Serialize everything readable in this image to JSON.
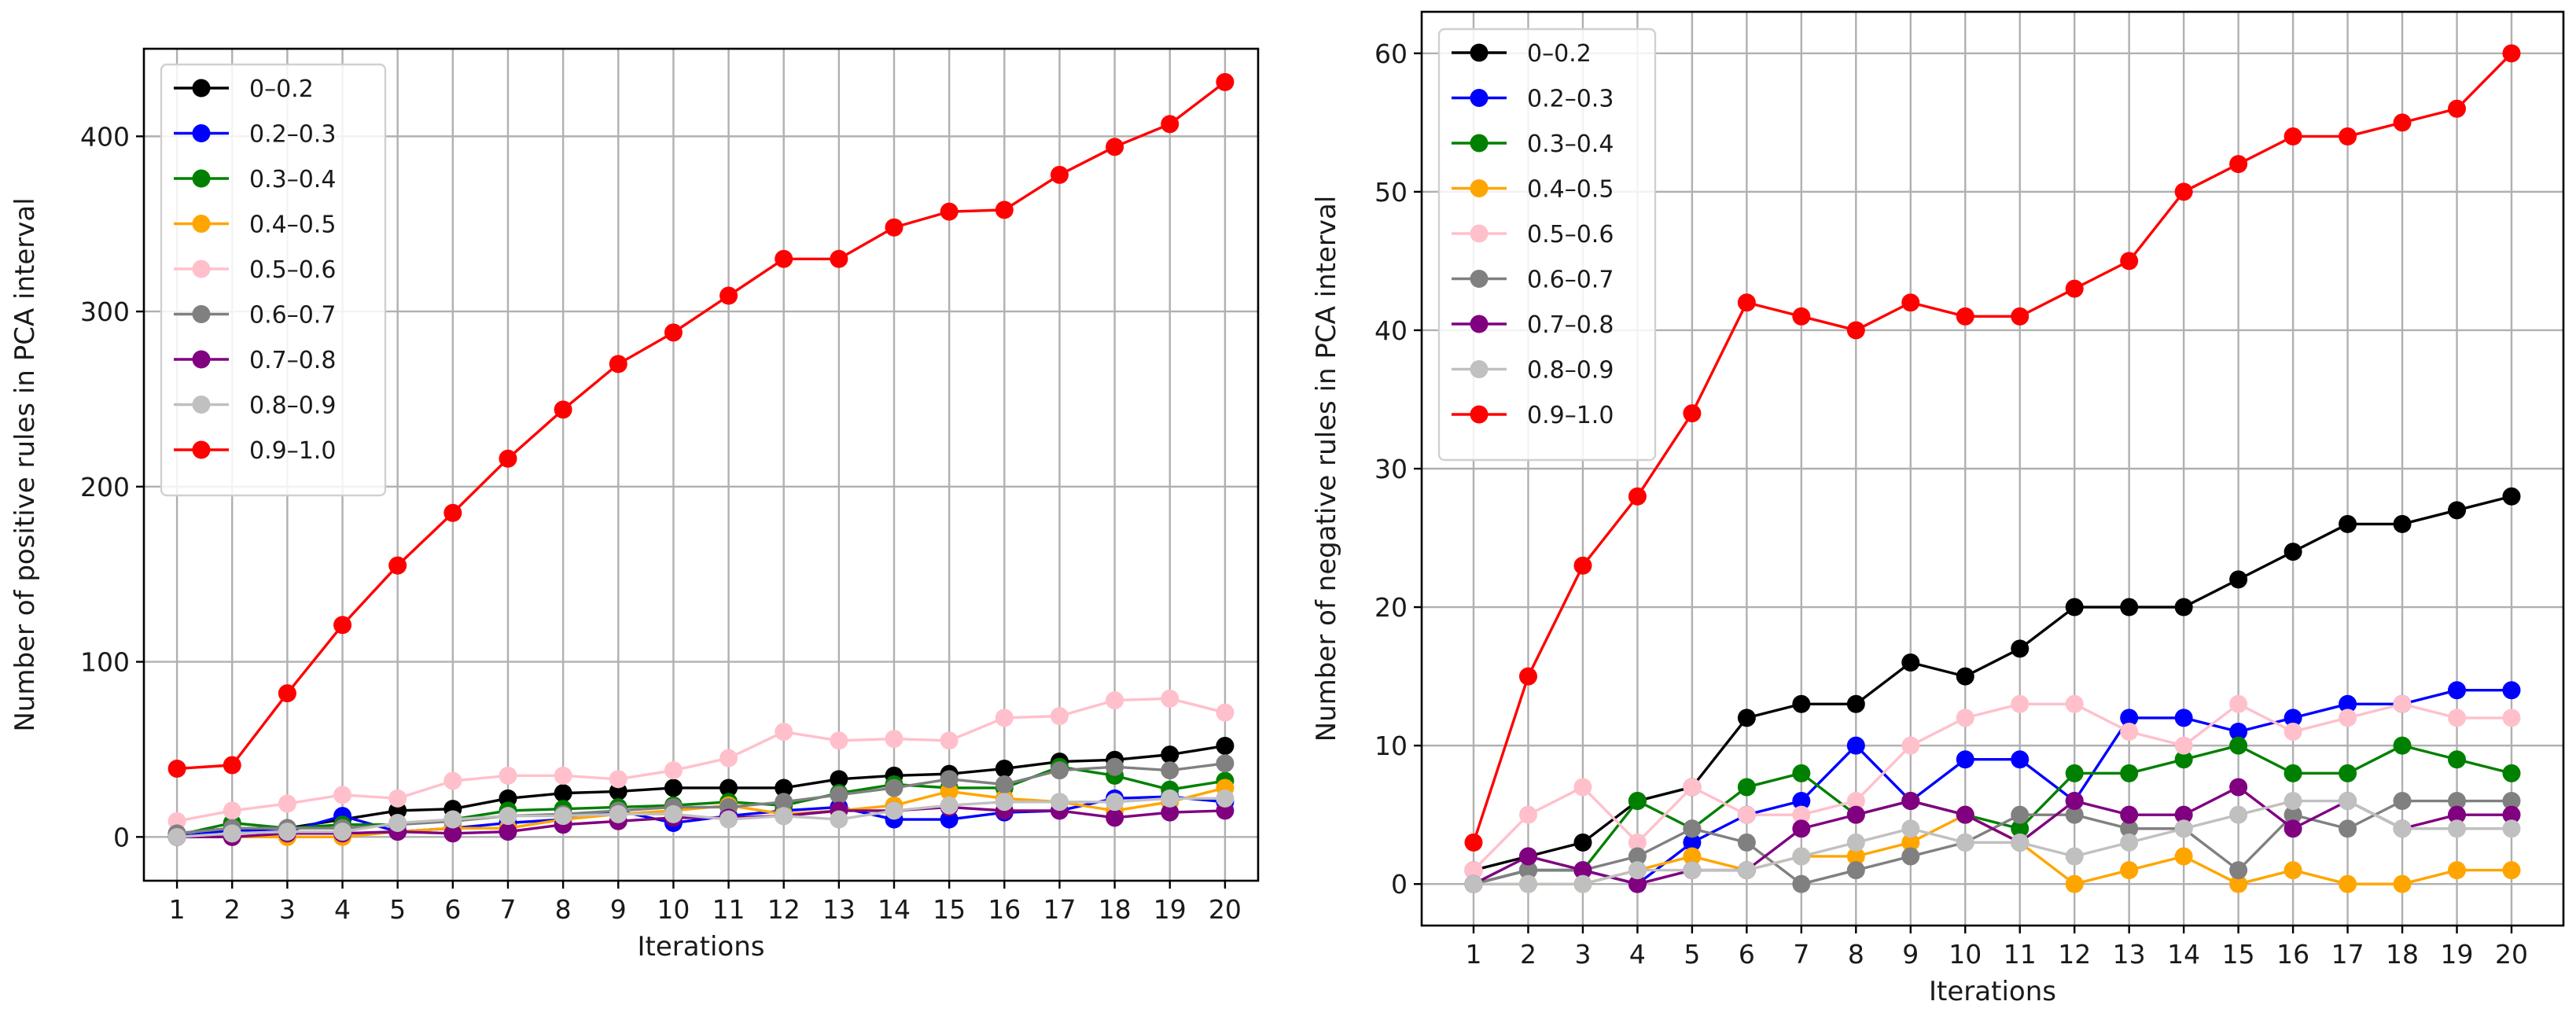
{
  "chart_data": [
    {
      "type": "line",
      "title": "",
      "xlabel": "Iterations",
      "ylabel": "Number of positive rules in PCA interval",
      "x": [
        1,
        2,
        3,
        4,
        5,
        6,
        7,
        8,
        9,
        10,
        11,
        12,
        13,
        14,
        15,
        16,
        17,
        18,
        19,
        20
      ],
      "xticks": [
        "1",
        "2",
        "3",
        "4",
        "5",
        "6",
        "7",
        "8",
        "9",
        "10",
        "11",
        "12",
        "13",
        "14",
        "15",
        "16",
        "17",
        "18",
        "19",
        "20"
      ],
      "xlim": [
        0.4,
        20.6
      ],
      "ylim": [
        -25,
        450
      ],
      "yticks": [
        0,
        100,
        200,
        300,
        400
      ],
      "ytick_labels": [
        "0",
        "100",
        "200",
        "300",
        "400"
      ],
      "grid": true,
      "legend_position": "upper-left",
      "series": [
        {
          "name": "0–0.2",
          "color": "#000000",
          "values": [
            2,
            5,
            5,
            10,
            15,
            16,
            22,
            25,
            26,
            28,
            28,
            28,
            33,
            35,
            36,
            39,
            43,
            44,
            47,
            52
          ]
        },
        {
          "name": "0.2–0.3",
          "color": "#0000ff",
          "values": [
            0,
            4,
            3,
            12,
            3,
            5,
            8,
            10,
            15,
            8,
            12,
            15,
            17,
            10,
            10,
            14,
            15,
            22,
            23,
            20
          ]
        },
        {
          "name": "0.3–0.4",
          "color": "#008000",
          "values": [
            1,
            8,
            5,
            7,
            7,
            10,
            15,
            16,
            17,
            18,
            20,
            18,
            25,
            30,
            28,
            28,
            40,
            35,
            27,
            32
          ]
        },
        {
          "name": "0.4–0.5",
          "color": "#ffa500",
          "values": [
            0,
            0,
            0,
            0,
            3,
            5,
            5,
            10,
            13,
            15,
            18,
            13,
            15,
            18,
            26,
            22,
            20,
            15,
            20,
            28
          ]
        },
        {
          "name": "0.5–0.6",
          "color": "#ffc0cb",
          "values": [
            9,
            15,
            19,
            24,
            22,
            32,
            35,
            35,
            33,
            38,
            45,
            60,
            55,
            56,
            55,
            68,
            69,
            78,
            79,
            71
          ]
        },
        {
          "name": "0.6–0.7",
          "color": "#808080",
          "values": [
            2,
            5,
            5,
            5,
            7,
            9,
            12,
            13,
            15,
            17,
            17,
            20,
            24,
            28,
            33,
            30,
            38,
            40,
            38,
            42
          ]
        },
        {
          "name": "0.7–0.8",
          "color": "#800080",
          "values": [
            0,
            0,
            2,
            2,
            3,
            2,
            3,
            7,
            9,
            11,
            11,
            12,
            15,
            15,
            17,
            15,
            15,
            11,
            14,
            15
          ]
        },
        {
          "name": "0.8–0.9",
          "color": "#c0c0c0",
          "values": [
            0,
            2,
            3,
            3,
            8,
            10,
            12,
            12,
            13,
            13,
            10,
            12,
            10,
            15,
            18,
            20,
            20,
            20,
            22,
            22
          ]
        },
        {
          "name": "0.9–1.0",
          "color": "#ff0000",
          "values": [
            39,
            41,
            82,
            121,
            155,
            185,
            216,
            244,
            270,
            288,
            309,
            330,
            330,
            348,
            357,
            358,
            378,
            394,
            407,
            431
          ]
        }
      ]
    },
    {
      "type": "line",
      "title": "",
      "xlabel": "Iterations",
      "ylabel": "Number of negative rules in PCA interval",
      "x": [
        1,
        2,
        3,
        4,
        5,
        6,
        7,
        8,
        9,
        10,
        11,
        12,
        13,
        14,
        15,
        16,
        17,
        18,
        19,
        20
      ],
      "xticks": [
        "1",
        "2",
        "3",
        "4",
        "5",
        "6",
        "7",
        "8",
        "9",
        "10",
        "11",
        "12",
        "13",
        "14",
        "15",
        "16",
        "17",
        "18",
        "19",
        "20"
      ],
      "xlim": [
        0.05,
        20.95
      ],
      "ylim": [
        -3,
        63
      ],
      "yticks": [
        0,
        10,
        20,
        30,
        40,
        50,
        60
      ],
      "ytick_labels": [
        "0",
        "10",
        "20",
        "30",
        "40",
        "50",
        "60"
      ],
      "grid": true,
      "legend_position": "upper-left",
      "series": [
        {
          "name": "0–0.2",
          "color": "#000000",
          "values": [
            1,
            2,
            3,
            6,
            7,
            12,
            13,
            13,
            16,
            15,
            17,
            20,
            20,
            20,
            22,
            24,
            26,
            26,
            27,
            28
          ]
        },
        {
          "name": "0.2–0.3",
          "color": "#0000ff",
          "values": [
            0,
            1,
            1,
            0,
            3,
            5,
            6,
            10,
            6,
            9,
            9,
            6,
            12,
            12,
            11,
            12,
            13,
            13,
            14,
            14
          ]
        },
        {
          "name": "0.3–0.4",
          "color": "#008000",
          "values": [
            0,
            1,
            1,
            6,
            4,
            7,
            8,
            5,
            6,
            5,
            4,
            8,
            8,
            9,
            10,
            8,
            8,
            10,
            9,
            8
          ]
        },
        {
          "name": "0.4–0.5",
          "color": "#ffa500",
          "values": [
            0,
            0,
            0,
            1,
            2,
            1,
            2,
            2,
            3,
            5,
            3,
            0,
            1,
            2,
            0,
            1,
            0,
            0,
            1,
            1
          ]
        },
        {
          "name": "0.5–0.6",
          "color": "#ffc0cb",
          "values": [
            1,
            5,
            7,
            3,
            7,
            5,
            5,
            6,
            10,
            12,
            13,
            13,
            11,
            10,
            13,
            11,
            12,
            13,
            12,
            12
          ]
        },
        {
          "name": "0.6–0.7",
          "color": "#808080",
          "values": [
            0,
            1,
            1,
            2,
            4,
            3,
            0,
            1,
            2,
            3,
            5,
            5,
            4,
            4,
            1,
            5,
            4,
            6,
            6,
            6
          ]
        },
        {
          "name": "0.7–0.8",
          "color": "#800080",
          "values": [
            0,
            2,
            1,
            0,
            1,
            1,
            4,
            5,
            6,
            5,
            3,
            6,
            5,
            5,
            7,
            4,
            6,
            4,
            5,
            5
          ]
        },
        {
          "name": "0.8–0.9",
          "color": "#c0c0c0",
          "values": [
            0,
            0,
            0,
            1,
            1,
            1,
            2,
            3,
            4,
            3,
            3,
            2,
            3,
            4,
            5,
            6,
            6,
            4,
            4,
            4
          ]
        },
        {
          "name": "0.9–1.0",
          "color": "#ff0000",
          "values": [
            3,
            15,
            23,
            28,
            34,
            42,
            41,
            40,
            42,
            41,
            41,
            43,
            45,
            50,
            52,
            54,
            54,
            55,
            56,
            60
          ]
        }
      ]
    }
  ]
}
